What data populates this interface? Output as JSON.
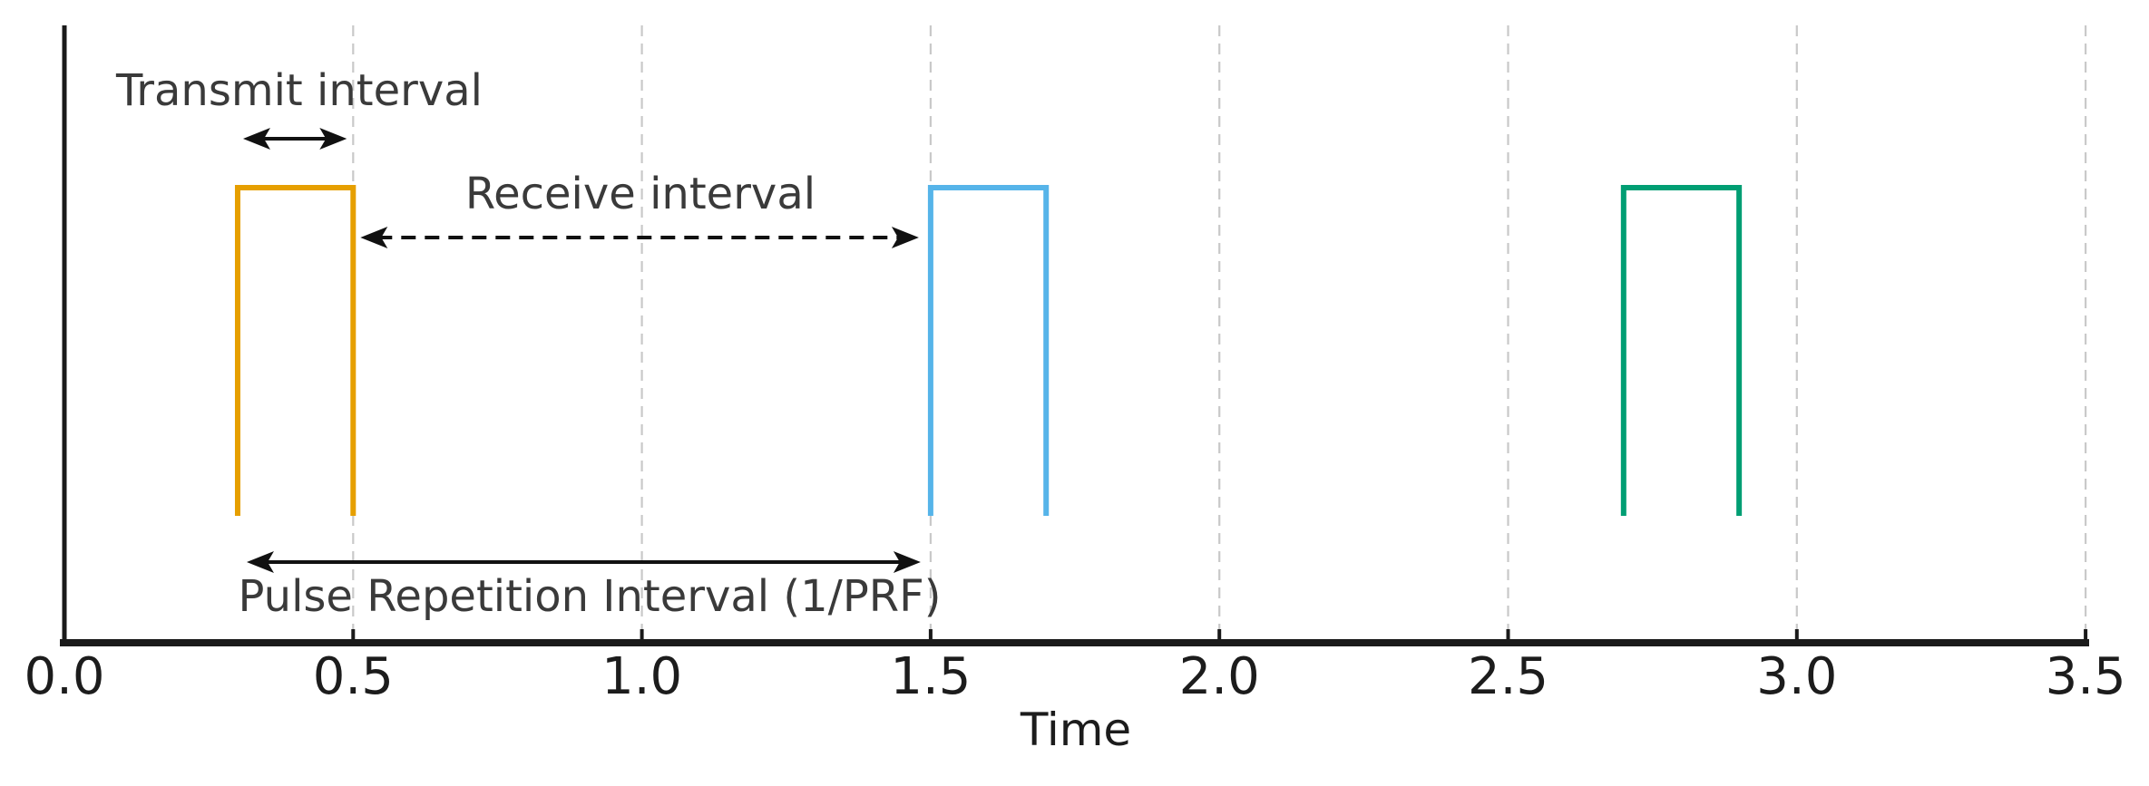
{
  "chart_data": {
    "type": "line",
    "subtype": "pulse-timing-diagram",
    "title": "",
    "xlabel": "Time",
    "ylabel": "",
    "xlim": [
      0,
      3.55
    ],
    "x_ticks": [
      0.0,
      0.5,
      1.0,
      1.5,
      2.0,
      2.5,
      3.0,
      3.5
    ],
    "x_tick_labels": [
      "0.0",
      "0.5",
      "1.0",
      "1.5",
      "2.0",
      "2.5",
      "3.0",
      "3.5"
    ],
    "grid": {
      "vertical_dashed_at": [
        0.5,
        1.0,
        1.5,
        2.0,
        2.5,
        3.0,
        3.5
      ],
      "color": "#c9c9c9"
    },
    "pulses": [
      {
        "name": "pulse-1",
        "start": 0.3,
        "end": 0.5,
        "color": "#E69F00"
      },
      {
        "name": "pulse-2",
        "start": 1.5,
        "end": 1.7,
        "color": "#56B4E9"
      },
      {
        "name": "pulse-3",
        "start": 2.7,
        "end": 2.9,
        "color": "#009E73"
      }
    ],
    "annotations": [
      {
        "label": "Transmit interval",
        "style": "solid-double-arrow",
        "from": 0.3,
        "to": 0.5
      },
      {
        "label": "Receive interval",
        "style": "dashed-double-arrow",
        "from": 0.5,
        "to": 1.5
      },
      {
        "label": "Pulse Repetition Interval (1/PRF)",
        "style": "solid-double-arrow",
        "from": 0.3,
        "to": 1.5
      }
    ],
    "axis_color": "#1a1a1a",
    "arrow_color": "#111111",
    "tick_label_color": "#1c1c1c",
    "annotation_text_color": "#3a3a3a",
    "background_color": "#ffffff"
  }
}
